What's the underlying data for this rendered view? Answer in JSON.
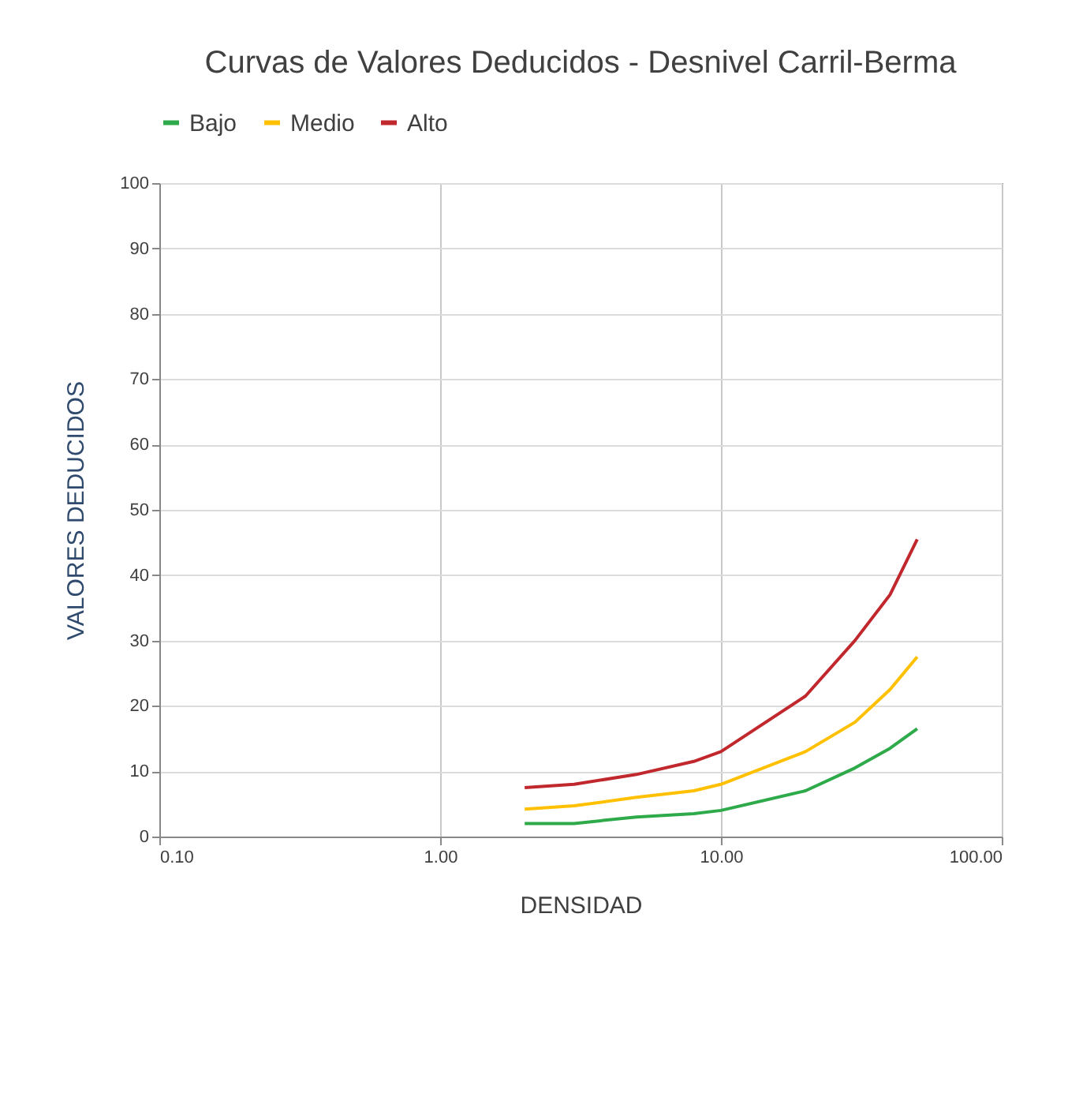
{
  "chart_data": {
    "type": "line",
    "title": "Curvas de Valores Deducidos - Desnivel Carril-Berma",
    "xlabel": "DENSIDAD",
    "ylabel": "VALORES DEDUCIDOS",
    "log": "x",
    "xlim": [
      0.1,
      100
    ],
    "xticks": [
      {
        "value": 0.1,
        "label": "0.10"
      },
      {
        "value": 1,
        "label": "1.00"
      },
      {
        "value": 10,
        "label": "10.00"
      },
      {
        "value": 100,
        "label": "100.00"
      }
    ],
    "ylim": [
      0,
      100
    ],
    "yticks": [
      0,
      10,
      20,
      30,
      40,
      50,
      60,
      70,
      80,
      90,
      100
    ],
    "grid": true,
    "legend": "top",
    "marker": "none",
    "line_style": "solid",
    "x": [
      2,
      3,
      5,
      8,
      10,
      20,
      30,
      40,
      50
    ],
    "series": [
      {
        "name": "Bajo",
        "color": "#2eaa4a",
        "values": [
          2,
          2,
          3,
          3.5,
          4,
          7,
          10.5,
          13.5,
          16.5
        ]
      },
      {
        "name": "Medio",
        "color": "#ffc000",
        "values": [
          4.2,
          4.7,
          6,
          7,
          8,
          13,
          17.5,
          22.5,
          27.5
        ]
      },
      {
        "name": "Alto",
        "color": "#c0282d",
        "values": [
          7.5,
          8,
          9.5,
          11.5,
          13,
          21.5,
          30,
          37,
          45.5
        ]
      }
    ]
  }
}
